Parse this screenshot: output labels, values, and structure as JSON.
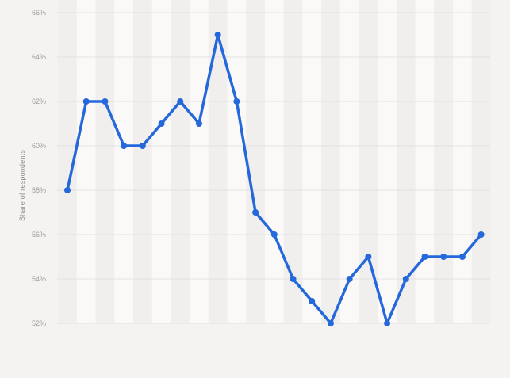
{
  "chart": {
    "colors": {
      "line": "#2468db",
      "marker": "#2468db",
      "background": "#f4f3f1",
      "band_light": "#faf9f7",
      "band_dark": "#f0efed",
      "gridline": "#e3e2e0",
      "tick_text": "#9a9a98"
    }
  },
  "chart_data": {
    "type": "line",
    "title": "",
    "xlabel": "",
    "ylabel": "Share of respondents",
    "unit": "%",
    "values": [
      58,
      62,
      62,
      60,
      60,
      61,
      62,
      61,
      65,
      62,
      57,
      56,
      54,
      53,
      52,
      54,
      55,
      52,
      54,
      55,
      55,
      55,
      56
    ],
    "ylim": [
      52,
      66
    ],
    "y_tick_step": 2,
    "y_tick_labels": [
      "66%",
      "64%",
      "62%",
      "60%",
      "58%",
      "56%",
      "54%",
      "52%"
    ],
    "x_tick_labels": [],
    "grid": "horizontal",
    "legend": "none",
    "marker": "circle",
    "line_width": 3.5,
    "marker_radius": 4
  }
}
